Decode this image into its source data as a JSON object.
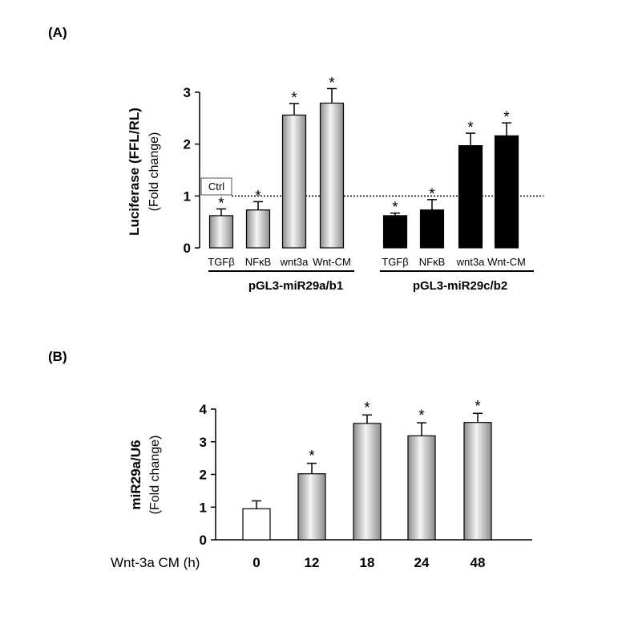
{
  "chart_data": [
    {
      "panel_label": "(A)",
      "type": "bar",
      "ylabel_main": "Luciferase (FFL/RL)",
      "ylabel_sub": "(Fold change)",
      "ylim": [
        0,
        3
      ],
      "yticks": [
        "0",
        "1",
        "2",
        "3"
      ],
      "reference_line": {
        "value": 1,
        "label": "Ctrl",
        "style": "dotted"
      },
      "groups": [
        {
          "name": "pGL3-miR29a/b1",
          "fill": "gradient-gray",
          "categories": [
            "TGFβ",
            "NFκB",
            "wnt3a",
            "Wnt-CM"
          ],
          "values": [
            0.62,
            0.73,
            2.56,
            2.79
          ],
          "errors": [
            0.13,
            0.16,
            0.22,
            0.28
          ],
          "significance": [
            "*",
            "*",
            "*",
            "*"
          ]
        },
        {
          "name": "pGL3-miR29c/b2",
          "fill": "#000000",
          "categories": [
            "TGFβ",
            "NFκB",
            "wnt3a",
            "Wnt-CM"
          ],
          "values": [
            0.62,
            0.73,
            1.97,
            2.16
          ],
          "errors": [
            0.05,
            0.2,
            0.24,
            0.25
          ],
          "significance": [
            "*",
            "*",
            "*",
            "*"
          ]
        }
      ]
    },
    {
      "panel_label": "(B)",
      "type": "bar",
      "ylabel_main": "miR29a/U6",
      "ylabel_sub": "(Fold change)",
      "ylim": [
        0,
        4
      ],
      "yticks": [
        "0",
        "1",
        "2",
        "3",
        "4"
      ],
      "xlabel": "Wnt-3a CM (h)",
      "categories": [
        "0",
        "12",
        "18",
        "24",
        "48"
      ],
      "values": [
        0.95,
        2.02,
        3.56,
        3.18,
        3.59
      ],
      "errors": [
        0.24,
        0.32,
        0.26,
        0.4,
        0.28
      ],
      "fills": [
        "#ffffff",
        "gradient-gray",
        "gradient-gray",
        "gradient-gray",
        "gradient-gray"
      ],
      "significance": [
        "",
        "*",
        "*",
        "*",
        "*"
      ]
    }
  ]
}
